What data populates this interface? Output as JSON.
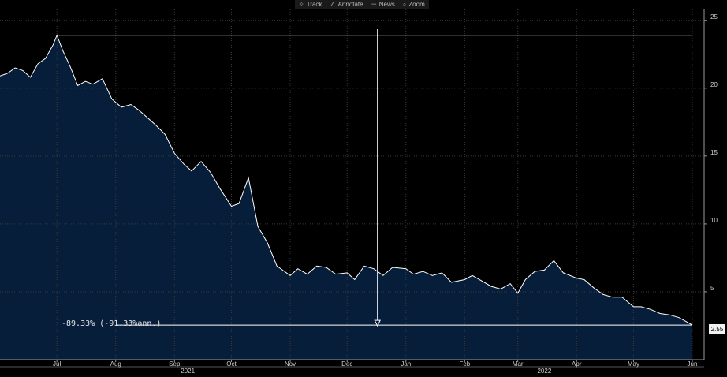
{
  "toolbar": {
    "items": [
      {
        "label": "Track",
        "icon": "crosshair-icon"
      },
      {
        "label": "Annotate",
        "icon": "pencil-icon"
      },
      {
        "label": "News",
        "icon": "list-icon"
      },
      {
        "label": "Zoom",
        "icon": "magnifier-icon"
      }
    ]
  },
  "annotation": {
    "text": "-89.33% (-91.33%ann.)"
  },
  "last_value_label": "2.55",
  "colors": {
    "background": "#000000",
    "area_fill": "#061e3a",
    "line": "#ffffff",
    "grid": "#3a3a3a"
  },
  "chart_data": {
    "type": "area",
    "title": "",
    "xlabel": "",
    "ylabel": "",
    "ylim": [
      0,
      25.8
    ],
    "y_ticks": [
      5,
      10,
      15,
      20,
      25
    ],
    "x_tick_labels": [
      "Jul",
      "Aug",
      "Sep",
      "Oct",
      "Nov",
      "Dec",
      "Jan",
      "Feb",
      "Mar",
      "Apr",
      "May",
      "Jun"
    ],
    "x_tick_dates": [
      "2021-07-01",
      "2021-08-01",
      "2021-09-01",
      "2021-10-01",
      "2021-11-01",
      "2021-12-01",
      "2022-01-01",
      "2022-02-01",
      "2022-03-01",
      "2022-04-01",
      "2022-05-01",
      "2022-06-01"
    ],
    "year_labels": [
      {
        "text": "2021",
        "date": "2021-09-08"
      },
      {
        "text": "2022",
        "date": "2022-03-15"
      }
    ],
    "x_range": [
      "2021-06-01",
      "2022-06-01"
    ],
    "grid": true,
    "reference_line": {
      "value": 23.9,
      "from": "2021-07-01",
      "to": "2022-06-01"
    },
    "annotation_line": {
      "value": 2.55,
      "from": "2021-07-01",
      "to": "2022-06-01"
    },
    "marker": {
      "date": "2021-12-17"
    },
    "series": [
      {
        "x": [
          "2021-06-01",
          "2021-06-05",
          "2021-06-09",
          "2021-06-13",
          "2021-06-17",
          "2021-06-21",
          "2021-06-25",
          "2021-06-29",
          "2021-07-01",
          "2021-07-04",
          "2021-07-08",
          "2021-07-12",
          "2021-07-16",
          "2021-07-20",
          "2021-07-25",
          "2021-07-30",
          "2021-08-04",
          "2021-08-09",
          "2021-08-13",
          "2021-08-18",
          "2021-08-22",
          "2021-08-27",
          "2021-09-01",
          "2021-09-06",
          "2021-09-10",
          "2021-09-15",
          "2021-09-20",
          "2021-09-25",
          "2021-10-01",
          "2021-10-05",
          "2021-10-10",
          "2021-10-15",
          "2021-10-20",
          "2021-10-25",
          "2021-10-28",
          "2021-11-01",
          "2021-11-05",
          "2021-11-10",
          "2021-11-15",
          "2021-11-20",
          "2021-11-25",
          "2021-12-01",
          "2021-12-05",
          "2021-12-10",
          "2021-12-15",
          "2021-12-20",
          "2021-12-25",
          "2022-01-01",
          "2022-01-05",
          "2022-01-10",
          "2022-01-15",
          "2022-01-20",
          "2022-01-25",
          "2022-02-01",
          "2022-02-05",
          "2022-02-10",
          "2022-02-15",
          "2022-02-20",
          "2022-02-25",
          "2022-03-01",
          "2022-03-05",
          "2022-03-10",
          "2022-03-15",
          "2022-03-20",
          "2022-03-25",
          "2022-04-01",
          "2022-04-05",
          "2022-04-10",
          "2022-04-15",
          "2022-04-20",
          "2022-04-25",
          "2022-05-01",
          "2022-05-05",
          "2022-05-10",
          "2022-05-15",
          "2022-05-20",
          "2022-05-25",
          "2022-06-01"
        ],
        "y": [
          20.9,
          21.1,
          21.5,
          21.3,
          20.8,
          21.8,
          22.2,
          23.2,
          23.9,
          22.8,
          21.6,
          20.2,
          20.5,
          20.3,
          20.7,
          19.2,
          18.6,
          18.8,
          18.4,
          17.8,
          17.3,
          16.6,
          15.2,
          14.4,
          13.9,
          14.6,
          13.8,
          12.6,
          11.3,
          11.5,
          13.4,
          9.8,
          8.6,
          6.9,
          6.6,
          6.2,
          6.7,
          6.3,
          6.9,
          6.8,
          6.3,
          6.4,
          5.9,
          6.9,
          6.7,
          6.2,
          6.8,
          6.7,
          6.3,
          6.5,
          6.2,
          6.4,
          5.7,
          5.9,
          6.2,
          5.8,
          5.4,
          5.2,
          5.6,
          4.9,
          5.9,
          6.5,
          6.6,
          7.3,
          6.4,
          6.0,
          5.9,
          5.3,
          4.8,
          4.6,
          4.6,
          3.9,
          3.9,
          3.7,
          3.4,
          3.3,
          3.1,
          2.55
        ]
      }
    ]
  }
}
